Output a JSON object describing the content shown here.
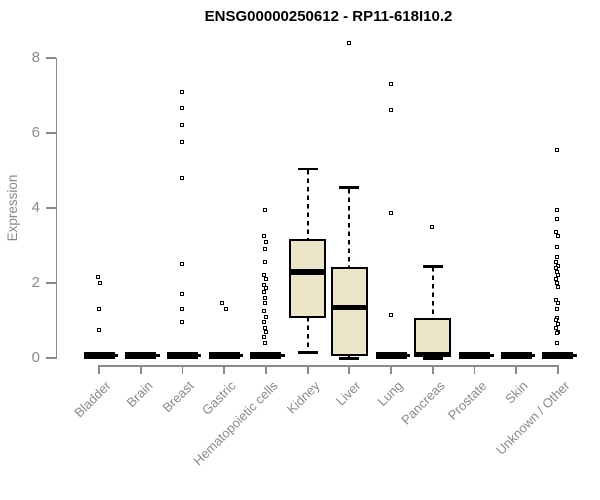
{
  "colors": {
    "background": "#FFFFFF",
    "box_fill": "#ECE5C7",
    "box_border": "#000000",
    "median": "#000000",
    "axis": "#8A8A8A",
    "axis_text": "#8A8A8A",
    "title_text": "#000000"
  },
  "chart_data": {
    "type": "boxplot",
    "title": "ENSG00000250612 - RP11-618I10.2",
    "ylabel": "Expression",
    "xlabel": "",
    "ylim": [
      0,
      8.5
    ],
    "yticks": [
      0,
      2,
      4,
      6,
      8
    ],
    "grid": false,
    "legend_position": "none",
    "categories": [
      "Bladder",
      "Brain",
      "Breast",
      "Gastric",
      "Hematopoietic cells",
      "Kidney",
      "Liver",
      "Lung",
      "Pancreas",
      "Prostate",
      "Skin",
      "Unknown / Other"
    ],
    "series": [
      {
        "category": "Bladder",
        "stats": {
          "lo": 0,
          "q1": 0,
          "med": 0,
          "q3": 0,
          "hi": 0
        },
        "outliers": [
          [
            2.15,
            -1
          ],
          [
            2.0,
            1
          ],
          [
            1.3,
            0
          ],
          [
            0.75,
            0
          ]
        ]
      },
      {
        "category": "Brain",
        "stats": {
          "lo": 0,
          "q1": 0,
          "med": 0,
          "q3": 0,
          "hi": 0
        },
        "outliers": []
      },
      {
        "category": "Breast",
        "stats": {
          "lo": 0,
          "q1": 0,
          "med": 0,
          "q3": 0,
          "hi": 0
        },
        "outliers": [
          [
            7.1,
            0
          ],
          [
            6.65,
            0
          ],
          [
            6.2,
            0
          ],
          [
            5.75,
            0
          ],
          [
            4.8,
            0
          ],
          [
            2.5,
            0
          ],
          [
            1.7,
            0
          ],
          [
            1.3,
            0
          ],
          [
            0.95,
            0
          ]
        ]
      },
      {
        "category": "Gastric",
        "stats": {
          "lo": 0,
          "q1": 0,
          "med": 0,
          "q3": 0,
          "hi": 0
        },
        "outliers": [
          [
            1.45,
            -2
          ],
          [
            1.3,
            2
          ]
        ]
      },
      {
        "category": "Hematopoietic cells",
        "stats": {
          "lo": 0,
          "q1": 0,
          "med": 0,
          "q3": 0,
          "hi": 0
        },
        "outliers": [
          [
            3.95,
            0
          ],
          [
            3.25,
            -1
          ],
          [
            3.1,
            1
          ],
          [
            2.9,
            0
          ],
          [
            2.55,
            0
          ],
          [
            2.2,
            -1
          ],
          [
            2.1,
            1
          ],
          [
            1.95,
            -1
          ],
          [
            1.85,
            1
          ],
          [
            1.75,
            -1
          ],
          [
            1.6,
            0
          ],
          [
            1.45,
            0
          ],
          [
            1.25,
            -1
          ],
          [
            1.1,
            1
          ],
          [
            0.95,
            -1
          ],
          [
            0.8,
            0
          ],
          [
            0.7,
            1
          ],
          [
            0.55,
            -1
          ],
          [
            0.4,
            0
          ]
        ]
      },
      {
        "category": "Kidney",
        "stats": {
          "lo": 0.15,
          "q1": 1.1,
          "med": 2.3,
          "q3": 3.15,
          "hi": 5.05
        },
        "outliers": []
      },
      {
        "category": "Liver",
        "stats": {
          "lo": 0,
          "q1": 0.1,
          "med": 1.35,
          "q3": 2.4,
          "hi": 4.55
        },
        "outliers": [
          [
            8.4,
            0
          ]
        ]
      },
      {
        "category": "Lung",
        "stats": {
          "lo": 0,
          "q1": 0,
          "med": 0,
          "q3": 0,
          "hi": 0
        },
        "outliers": [
          [
            7.3,
            0
          ],
          [
            6.6,
            0
          ],
          [
            3.85,
            0
          ],
          [
            1.15,
            0
          ]
        ]
      },
      {
        "category": "Pancreas",
        "stats": {
          "lo": 0,
          "q1": 0.05,
          "med": 0.1,
          "q3": 1.05,
          "hi": 2.45
        },
        "outliers": [
          [
            3.5,
            0
          ]
        ]
      },
      {
        "category": "Prostate",
        "stats": {
          "lo": 0,
          "q1": 0,
          "med": 0,
          "q3": 0,
          "hi": 0
        },
        "outliers": []
      },
      {
        "category": "Skin",
        "stats": {
          "lo": 0,
          "q1": 0,
          "med": 0,
          "q3": 0,
          "hi": 0
        },
        "outliers": []
      },
      {
        "category": "Unknown / Other",
        "stats": {
          "lo": 0,
          "q1": 0,
          "med": 0,
          "q3": 0,
          "hi": 0
        },
        "outliers": [
          [
            5.55,
            0
          ],
          [
            3.95,
            0
          ],
          [
            3.7,
            0
          ],
          [
            3.35,
            -1
          ],
          [
            3.25,
            1
          ],
          [
            2.95,
            0
          ],
          [
            2.7,
            0
          ],
          [
            2.55,
            -1
          ],
          [
            2.45,
            1
          ],
          [
            2.4,
            -1
          ],
          [
            2.3,
            0
          ],
          [
            2.2,
            1
          ],
          [
            2.1,
            -1
          ],
          [
            2.0,
            0
          ],
          [
            1.9,
            1
          ],
          [
            1.55,
            -1
          ],
          [
            1.45,
            1
          ],
          [
            1.3,
            0
          ],
          [
            1.05,
            0
          ],
          [
            1.0,
            -1
          ],
          [
            0.9,
            1
          ],
          [
            0.8,
            -1
          ],
          [
            0.7,
            1
          ],
          [
            0.65,
            0
          ],
          [
            0.4,
            0
          ]
        ]
      }
    ]
  }
}
